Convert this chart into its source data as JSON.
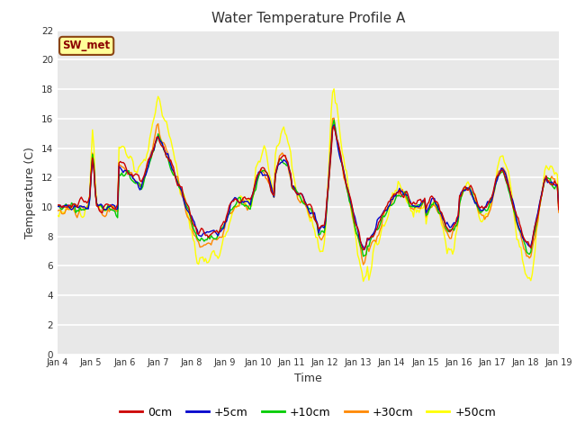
{
  "title": "Water Temperature Profile A",
  "xlabel": "Time",
  "ylabel": "Temperature (C)",
  "ylim": [
    0,
    22
  ],
  "yticks": [
    0,
    2,
    4,
    6,
    8,
    10,
    12,
    14,
    16,
    18,
    20,
    22
  ],
  "figure_bg": "#ffffff",
  "plot_bg": "#e8e8e8",
  "annotation_text": "SW_met",
  "annotation_bg": "#ffff99",
  "annotation_edge": "#8b4513",
  "annotation_text_color": "#8b0000",
  "series_colors": {
    "0cm": "#cc0000",
    "+5cm": "#0000cc",
    "+10cm": "#00cc00",
    "+30cm": "#ff8800",
    "+50cm": "#ffff00"
  },
  "x_tick_labels": [
    "Jan 4",
    "Jan 5",
    "Jan 6",
    "Jan 7",
    "Jan 8",
    "Jan 9",
    "Jan 10",
    "Jan 11",
    "Jan 12",
    "Jan 13",
    "Jan 14",
    "Jan 15",
    "Jan 16",
    "Jan 17",
    "Jan 18",
    "Jan 19"
  ],
  "legend_labels": [
    "0cm",
    "+5cm",
    "+10cm",
    "+30cm",
    "+50cm"
  ],
  "legend_colors": [
    "#cc0000",
    "#0000cc",
    "#00cc00",
    "#ff8800",
    "#ffff00"
  ],
  "grid_color": "#ffffff",
  "title_color": "#333333",
  "tick_label_color": "#333333"
}
